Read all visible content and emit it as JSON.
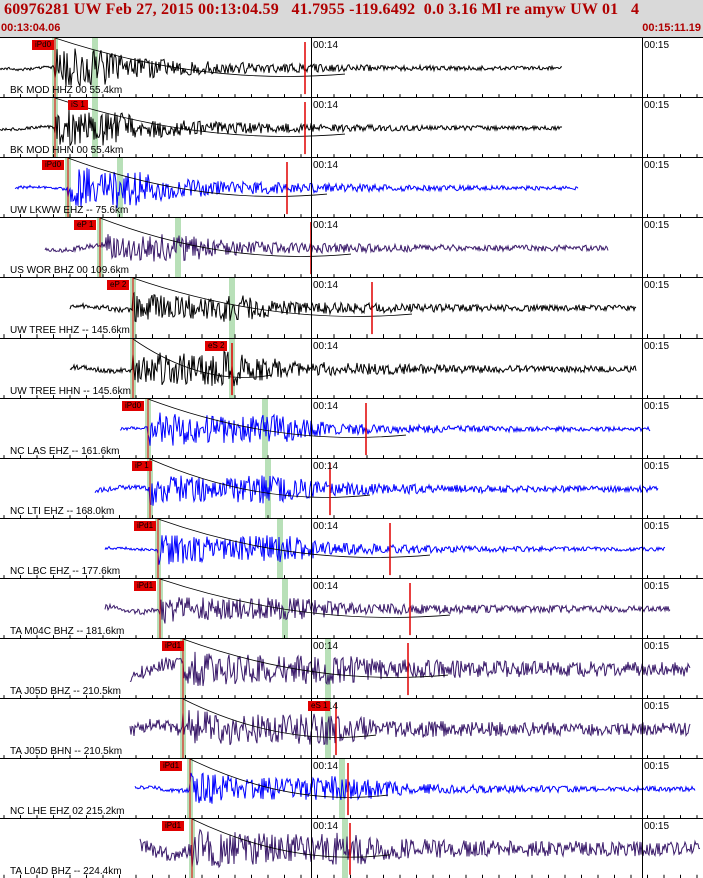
{
  "header": {
    "title": "60976281 UW Feb 27, 2015 00:13:04.59   41.7955 -119.6492  0.0 3.16 Ml re amyw UW 01   4",
    "start_time": "00:13:04.06",
    "end_time": "00:15:11.19"
  },
  "colors": {
    "red": "#e00000",
    "black": "#000000",
    "blue": "#0000ff",
    "purple": "#3a1a6a",
    "green": "#b8e0b8"
  },
  "channels": [
    {
      "label": "BK MOD HHZ 00 55.4km",
      "pick": "iPd0",
      "color": "black",
      "t14": "00:14",
      "t15": "00:15"
    },
    {
      "label": "BK MOD HHN 00 55.4km",
      "pick": "iS 1",
      "color": "black",
      "t14": "00:14",
      "t15": "00:15"
    },
    {
      "label": "UW LKWW EHZ -- 75.6km",
      "pick": "iPd0",
      "color": "blue",
      "t14": "00:14",
      "t15": "00:15"
    },
    {
      "label": "US WOR BHZ 00 109.6km",
      "pick": "eP 1",
      "color": "purple",
      "t14": "00:14",
      "t15": "00:15"
    },
    {
      "label": "UW TREE HHZ -- 145.6km",
      "pick": "eP 2",
      "color": "black",
      "t14": "00:14",
      "t15": "00:15"
    },
    {
      "label": "UW TREE HHN -- 145.6km",
      "pick": "eS 2",
      "color": "black",
      "t14": "00:14",
      "t15": "00:15"
    },
    {
      "label": "NC LAS EHZ -- 161.6km",
      "pick": "iPd0",
      "color": "blue",
      "t14": "00:14",
      "t15": "00:15"
    },
    {
      "label": "NC LTI EHZ -- 168.0km",
      "pick": "iP 1",
      "color": "blue",
      "t14": "00:14",
      "t15": "00:15"
    },
    {
      "label": "NC LBC EHZ -- 177.6km",
      "pick": "iPd1",
      "color": "blue",
      "t14": "00:14",
      "t15": "00:15"
    },
    {
      "label": "TA M04C BHZ -- 181.6km",
      "pick": "iPd1",
      "color": "purple",
      "t14": "00:14",
      "t15": "00:15"
    },
    {
      "label": "TA J05D BHZ -- 210.5km",
      "pick": "iPd1",
      "color": "purple",
      "t14": "00:14",
      "t15": "00:15"
    },
    {
      "label": "TA J05D BHN -- 210.5km",
      "pick": "eS 1",
      "color": "purple",
      "t14": "00:14",
      "t15": "00:15"
    },
    {
      "label": "NC LHE EHZ 02 215.2km",
      "pick": "iPd1",
      "color": "blue",
      "t14": "00:14",
      "t15": "00:15"
    },
    {
      "label": "TA L04D BHZ -- 224.4km",
      "pick": "iPd1",
      "color": "purple",
      "t14": "00:14",
      "t15": "00:15"
    }
  ]
}
